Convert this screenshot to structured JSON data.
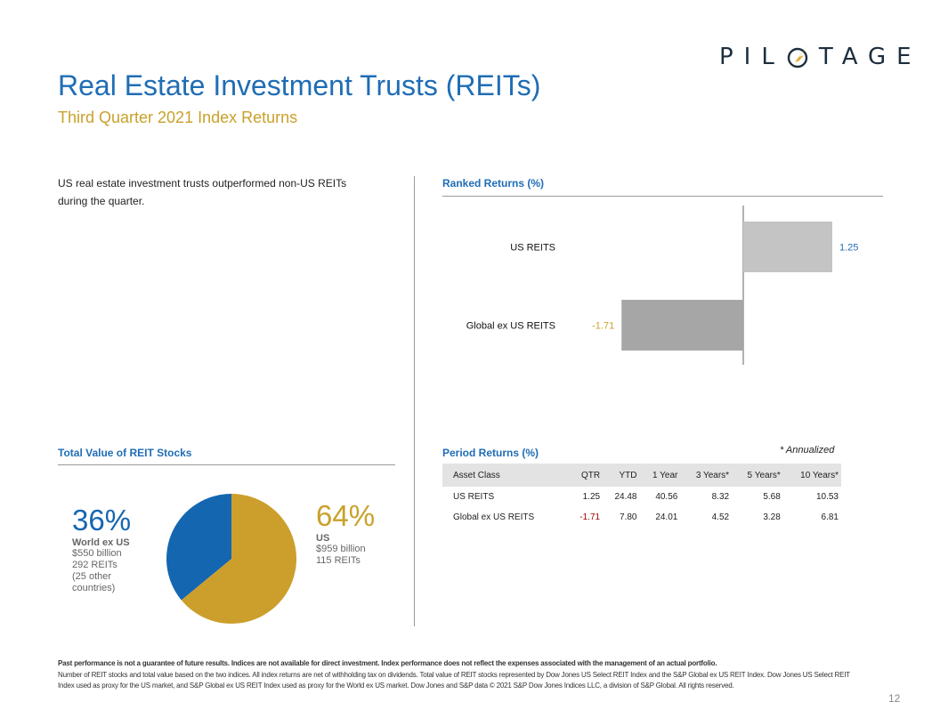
{
  "logo": {
    "left": "PIL",
    "right": "TAGE"
  },
  "header": {
    "title": "Real Estate Investment Trusts (REITs)",
    "subtitle": "Third Quarter 2021 Index Returns"
  },
  "intro": "US real estate investment trusts outperformed non-US REITs during the quarter.",
  "ranked": {
    "title": "Ranked Returns (%)"
  },
  "period": {
    "title": "Period Returns (%)",
    "note": "* Annualized",
    "headers": [
      "Asset Class",
      "QTR",
      "YTD",
      "1 Year",
      "3 Years*",
      "5 Years*",
      "10 Years*"
    ],
    "rows": [
      [
        "US REITS",
        "1.25",
        "24.48",
        "40.56",
        "8.32",
        "5.68",
        "10.53"
      ],
      [
        "Global ex US REITS",
        "-1.71",
        "7.80",
        "24.01",
        "4.52",
        "3.28",
        "6.81"
      ]
    ]
  },
  "total_value": {
    "title": "Total Value of REIT Stocks",
    "world": {
      "pct": "36%",
      "label": "World ex US",
      "value": "$550 billion",
      "count": "292 REITs",
      "note": "(25 other countries)"
    },
    "us": {
      "pct": "64%",
      "label": "US",
      "value": "$959 billion",
      "count": "115 REITs"
    }
  },
  "footnote": {
    "bold": "Past performance is not a guarantee of future results. Indices are not available for direct investment. Index performance does not reflect the expenses associated with the management of an actual portfolio.",
    "text": "Number of REIT stocks and total value based on the two indices. All index returns are net of withholding tax on dividends. Total value of REIT stocks represented by Dow Jones US Select REIT Index and the S&P Global ex US REIT Index. Dow Jones US Select REIT Index used as proxy for the US market, and S&P Global ex US REIT Index used as proxy for the World ex US market. Dow Jones and S&P data © 2021 S&P Dow Jones Indices LLC, a division of S&P Global. All rights reserved."
  },
  "page_number": "12",
  "colors": {
    "title_blue": "#1f6db5",
    "gold": "#c9a12b",
    "bar_positive": "#c4c4c4",
    "bar_negative": "#a6a6a6",
    "positive_label": "#1f6db5",
    "negative_label": "#c9a12b",
    "negative_text": "#a30000",
    "pie_world": "#1466b0",
    "pie_us": "#cc9f2d"
  },
  "chart_data": [
    {
      "type": "bar",
      "orientation": "horizontal",
      "title": "Ranked Returns (%)",
      "categories": [
        "US REITS",
        "Global ex US REITS"
      ],
      "values": [
        1.25,
        -1.71
      ]
    },
    {
      "type": "pie",
      "title": "Total Value of REIT Stocks",
      "labels": [
        "World ex US",
        "US"
      ],
      "values": [
        36,
        64
      ],
      "value_billions": [
        550,
        959
      ],
      "reit_counts": [
        292,
        115
      ]
    },
    {
      "type": "table",
      "title": "Period Returns (%)",
      "columns": [
        "Asset Class",
        "QTR",
        "YTD",
        "1 Year",
        "3 Years*",
        "5 Years*",
        "10 Years*"
      ],
      "rows": [
        [
          "US REITS",
          1.25,
          24.48,
          40.56,
          8.32,
          5.68,
          10.53
        ],
        [
          "Global ex US REITS",
          -1.71,
          7.8,
          24.01,
          4.52,
          3.28,
          6.81
        ]
      ]
    }
  ]
}
